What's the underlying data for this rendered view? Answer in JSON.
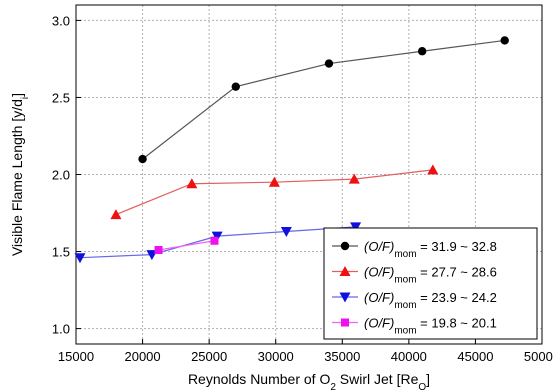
{
  "chart_data": {
    "type": "line",
    "xlabel": "Reynolds Number of O₂ Swirl Jet [Re₀]",
    "xlabel_parts": {
      "main": "Reynolds Number of O",
      "sub1": "2",
      "mid": " Swirl Jet [Re",
      "sub2": "O",
      "end": "]"
    },
    "ylabel_parts": {
      "main": "Visible Flame Length [y/d",
      "sub": "i",
      "end": "]"
    },
    "xlim": [
      15000,
      50000
    ],
    "ylim": [
      0.9,
      3.1
    ],
    "xticks": [
      15000,
      20000,
      25000,
      30000,
      35000,
      40000,
      45000,
      50000
    ],
    "yticks": [
      1.0,
      1.5,
      2.0,
      2.5,
      3.0
    ],
    "grid": true,
    "legend_position": "bottom-right",
    "series": [
      {
        "name": "(O/F)mom = 31.9 ~ 32.8",
        "label_prefix": "(O/F)",
        "label_sub": "mom",
        "label_range": " = 31.9 ~ 32.8",
        "color": "#555555",
        "marker_color": "#000000",
        "marker": "circle",
        "x": [
          20000,
          27000,
          34000,
          41000,
          47200
        ],
        "y": [
          2.1,
          2.57,
          2.72,
          2.8,
          2.87
        ]
      },
      {
        "name": "(O/F)mom = 27.7 ~ 28.6",
        "label_prefix": "(O/F)",
        "label_sub": "mom",
        "label_range": " = 27.7 ~ 28.6",
        "color": "#e06060",
        "marker_color": "#ee1111",
        "marker": "triangle-up",
        "x": [
          18000,
          23700,
          29900,
          35900,
          41800
        ],
        "y": [
          1.74,
          1.94,
          1.95,
          1.97,
          2.03
        ]
      },
      {
        "name": "(O/F)mom = 23.9 ~ 24.2",
        "label_prefix": "(O/F)",
        "label_sub": "mom",
        "label_range": " = 23.9 ~ 24.2",
        "color": "#6666ee",
        "marker_color": "#1111dd",
        "marker": "triangle-down",
        "x": [
          15300,
          20700,
          25600,
          30800,
          36000
        ],
        "y": [
          1.46,
          1.48,
          1.6,
          1.63,
          1.66
        ]
      },
      {
        "name": "(O/F)mom = 19.8 ~ 20.1",
        "label_prefix": "(O/F)",
        "label_sub": "mom",
        "label_range": " = 19.8 ~ 20.1",
        "color": "#ee66ee",
        "marker_color": "#ee11ee",
        "marker": "square",
        "x": [
          21200,
          25400
        ],
        "y": [
          1.51,
          1.57
        ]
      }
    ]
  }
}
